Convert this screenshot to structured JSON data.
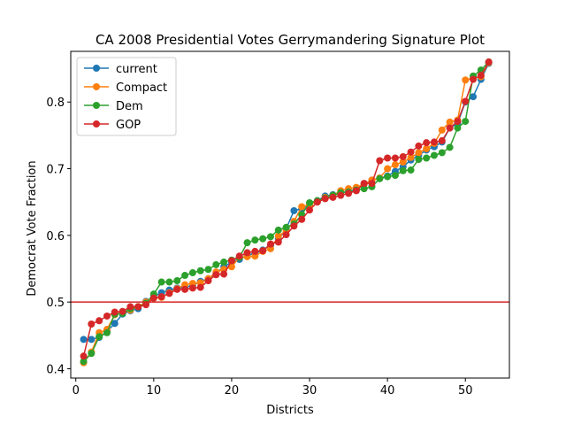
{
  "chart_data": {
    "type": "line",
    "title": "CA 2008 Presidential Votes Gerrymandering Signature Plot",
    "xlabel": "Districts",
    "ylabel": "Democrat Vote Fraction",
    "xlim": [
      -0.65,
      55.65
    ],
    "ylim": [
      0.386,
      0.876
    ],
    "xticks": [
      0,
      10,
      20,
      30,
      40,
      50
    ],
    "yticks": [
      0.4,
      0.5,
      0.6,
      0.7,
      0.8
    ],
    "ytick_labels": [
      "0.4",
      "0.5",
      "0.6",
      "0.7",
      "0.8"
    ],
    "grid": false,
    "legend_position": "upper-left",
    "reference_line": {
      "y": 0.5,
      "color": "#d62728"
    },
    "x": [
      1,
      2,
      3,
      4,
      5,
      6,
      7,
      8,
      9,
      10,
      11,
      12,
      13,
      14,
      15,
      16,
      17,
      18,
      19,
      20,
      21,
      22,
      23,
      24,
      25,
      26,
      27,
      28,
      29,
      30,
      31,
      32,
      33,
      34,
      35,
      36,
      37,
      38,
      39,
      40,
      41,
      42,
      43,
      44,
      45,
      46,
      47,
      48,
      49,
      50,
      51,
      52,
      53
    ],
    "series": [
      {
        "name": "current",
        "color": "#1f77b4",
        "values": [
          0.444,
          0.444,
          0.447,
          0.456,
          0.468,
          0.482,
          0.487,
          0.49,
          0.501,
          0.508,
          0.514,
          0.518,
          0.521,
          0.522,
          0.525,
          0.531,
          0.535,
          0.543,
          0.553,
          0.56,
          0.564,
          0.57,
          0.573,
          0.578,
          0.585,
          0.594,
          0.61,
          0.637,
          0.64,
          0.645,
          0.652,
          0.659,
          0.661,
          0.664,
          0.666,
          0.669,
          0.677,
          0.683,
          0.686,
          0.689,
          0.696,
          0.703,
          0.713,
          0.72,
          0.728,
          0.733,
          0.74,
          0.761,
          0.768,
          0.8,
          0.808,
          0.834,
          0.858
        ]
      },
      {
        "name": "Compact",
        "color": "#ff7f0e",
        "values": [
          0.409,
          0.425,
          0.454,
          0.459,
          0.481,
          0.484,
          0.488,
          0.493,
          0.5,
          0.506,
          0.507,
          0.514,
          0.52,
          0.526,
          0.528,
          0.529,
          0.535,
          0.545,
          0.549,
          0.553,
          0.567,
          0.568,
          0.569,
          0.576,
          0.58,
          0.599,
          0.607,
          0.621,
          0.643,
          0.646,
          0.651,
          0.657,
          0.66,
          0.667,
          0.67,
          0.672,
          0.677,
          0.683,
          0.686,
          0.7,
          0.706,
          0.71,
          0.717,
          0.724,
          0.73,
          0.738,
          0.758,
          0.77,
          0.773,
          0.833,
          0.836,
          0.838,
          0.859
        ]
      },
      {
        "name": "Dem",
        "color": "#2ca02c",
        "values": [
          0.411,
          0.423,
          0.448,
          0.454,
          0.482,
          0.483,
          0.49,
          0.493,
          0.498,
          0.512,
          0.53,
          0.53,
          0.532,
          0.54,
          0.544,
          0.547,
          0.549,
          0.556,
          0.56,
          0.563,
          0.567,
          0.589,
          0.593,
          0.595,
          0.598,
          0.608,
          0.612,
          0.617,
          0.631,
          0.649,
          0.652,
          0.656,
          0.66,
          0.664,
          0.665,
          0.668,
          0.67,
          0.673,
          0.685,
          0.688,
          0.69,
          0.697,
          0.698,
          0.714,
          0.716,
          0.72,
          0.724,
          0.732,
          0.761,
          0.771,
          0.839,
          0.848,
          0.86
        ]
      },
      {
        "name": "GOP",
        "color": "#d62728",
        "values": [
          0.419,
          0.467,
          0.472,
          0.479,
          0.485,
          0.486,
          0.493,
          0.493,
          0.496,
          0.506,
          0.508,
          0.513,
          0.519,
          0.519,
          0.521,
          0.522,
          0.532,
          0.541,
          0.542,
          0.562,
          0.569,
          0.574,
          0.576,
          0.577,
          0.587,
          0.59,
          0.601,
          0.614,
          0.624,
          0.638,
          0.65,
          0.655,
          0.657,
          0.66,
          0.663,
          0.667,
          0.678,
          0.678,
          0.712,
          0.716,
          0.716,
          0.718,
          0.725,
          0.734,
          0.739,
          0.74,
          0.742,
          0.761,
          0.771,
          0.801,
          0.834,
          0.84,
          0.86
        ]
      }
    ]
  }
}
